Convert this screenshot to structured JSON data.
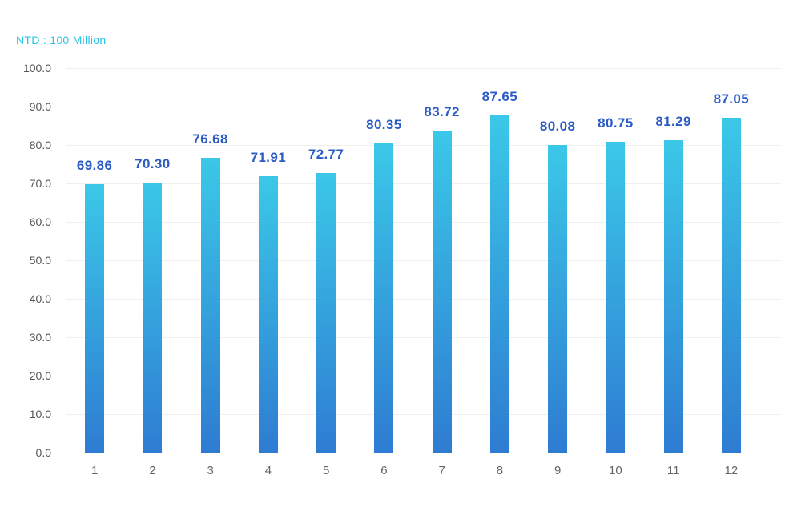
{
  "chart": {
    "title": "NTD : 100 Million"
  },
  "chart_data": {
    "type": "bar",
    "title": "NTD : 100 Million",
    "categories": [
      "1",
      "2",
      "3",
      "4",
      "5",
      "6",
      "7",
      "8",
      "9",
      "10",
      "11",
      "12"
    ],
    "values": [
      69.86,
      70.3,
      76.68,
      71.91,
      72.77,
      80.35,
      83.72,
      87.65,
      80.08,
      80.75,
      81.29,
      87.05
    ],
    "value_labels": [
      "69.86",
      "70.30",
      "76.68",
      "71.91",
      "72.77",
      "80.35",
      "83.72",
      "87.65",
      "80.08",
      "80.75",
      "81.29",
      "87.05"
    ],
    "xlabel": "",
    "ylabel": "",
    "ylim": [
      0,
      100
    ],
    "y_tick_step": 10,
    "y_tick_labels": [
      "100.0",
      "90.0",
      "80.0",
      "70.0",
      "60.0",
      "50.0",
      "40.0",
      "30.0",
      "20.0",
      "10.0",
      "0.0"
    ],
    "grid": "horizontal",
    "legend": "none"
  },
  "colors": {
    "bar_gradient_top": "#3BC8E8",
    "bar_gradient_bottom": "#2E7CD2",
    "value_label": "#2B5CC4",
    "title": "#2BC4E4",
    "y_axis_label": "#555555",
    "x_axis_label": "#666666",
    "gridline": "#EFEFEF",
    "baseline": "#D5D5D5"
  }
}
